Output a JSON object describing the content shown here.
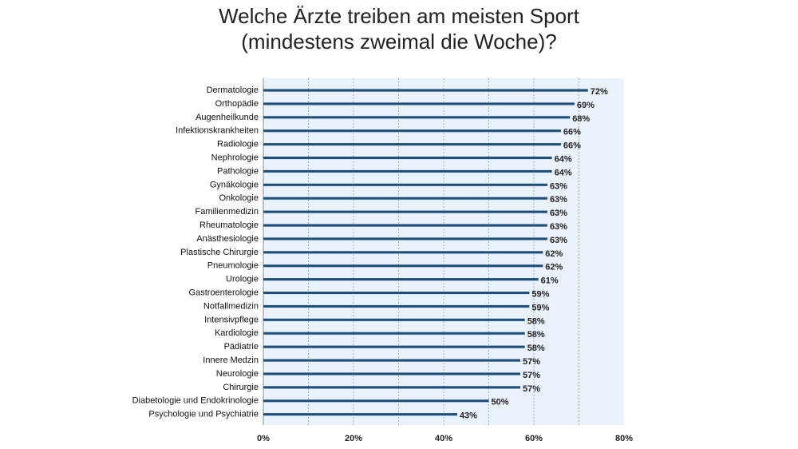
{
  "chart_data": {
    "type": "bar",
    "orientation": "horizontal",
    "title_lines": [
      "Welche Ärzte treiben am meisten Sport",
      "(mindestens zweimal die Woche)?"
    ],
    "categories": [
      "Dermatologie",
      "Orthopädie",
      "Augenheilkunde",
      "Infektionskrankheiten",
      "Radiologie",
      "Nephrologie",
      "Pathologie",
      "Gynäkologie",
      "Onkologie",
      "Familienmedizin",
      "Rheumatologie",
      "Anästhesiologie",
      "Plastische Chirurgie",
      "Pneumologie",
      "Urologie",
      "Gastroenterologie",
      "Notfallmedizin",
      "Intensivpflege",
      "Kardiologie",
      "Pädiatrie",
      "Innere Medzin",
      "Neurologie",
      "Chirurgie",
      "Diabetologie und Endokrinologie",
      "Psychologie und Psychiatrie"
    ],
    "values": [
      72,
      69,
      68,
      66,
      66,
      64,
      64,
      63,
      63,
      63,
      63,
      63,
      62,
      62,
      61,
      59,
      59,
      58,
      58,
      58,
      57,
      57,
      57,
      50,
      43
    ],
    "value_labels": [
      "72%",
      "69%",
      "68%",
      "66%",
      "66%",
      "64%",
      "64%",
      "63%",
      "63%",
      "63%",
      "63%",
      "63%",
      "62%",
      "62%",
      "61%",
      "59%",
      "59%",
      "58%",
      "58%",
      "58%",
      "57%",
      "57%",
      "57%",
      "50%",
      "43%"
    ],
    "x_ticks": [
      0,
      20,
      40,
      60,
      80
    ],
    "x_tick_labels": [
      "0%",
      "20%",
      "40%",
      "60%",
      "80%"
    ],
    "xlim": [
      0,
      80
    ],
    "xlabel": "",
    "ylabel": "",
    "grid": true,
    "legend": "none",
    "colors": {
      "bar": "#1f4e79",
      "bar_shadow": "#b9cde3",
      "plot_bg": "#eaf2fb",
      "grid": "#9db0c8",
      "text": "#222222"
    }
  }
}
